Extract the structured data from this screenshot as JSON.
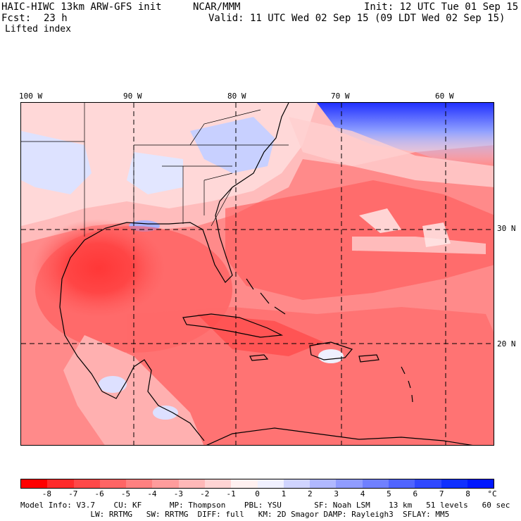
{
  "header": {
    "model_title": "HAIC-HIWC 13km ARW-GFS init",
    "org": "NCAR/MMM",
    "init": "Init: 12 UTC Tue 01 Sep 15",
    "fcst_label": "Fcst:",
    "fcst_value": "23 h",
    "valid": "Valid: 11 UTC Wed 02 Sep 15 (09 LDT Wed 02 Sep 15)",
    "field": "Lifted index"
  },
  "map": {
    "lon_labels": [
      "100 W",
      "90 W",
      "80 W",
      "70 W",
      "60 W"
    ],
    "lat_labels": [
      "30 N",
      "20 N"
    ]
  },
  "colorbar": {
    "levels": [
      "-8",
      "-7",
      "-6",
      "-5",
      "-4",
      "-3",
      "-2",
      "-1",
      "0",
      "1",
      "2",
      "3",
      "4",
      "5",
      "6",
      "7",
      "8"
    ],
    "unit": "°C",
    "colors": [
      "#ff0000",
      "#ff2a2a",
      "#ff4848",
      "#ff6464",
      "#ff8080",
      "#ff9c9c",
      "#ffb8b8",
      "#ffd4d4",
      "#fff0f0",
      "#f0f0ff",
      "#d0d4ff",
      "#b0b8ff",
      "#909cff",
      "#7080ff",
      "#5064ff",
      "#3048ff",
      "#1030ff",
      "#0018ff"
    ]
  },
  "footer": {
    "line1": "Model Info: V3.7    CU: KF      MP: Thompson    PBL: YSU       SF: Noah LSM    13 km   51 levels   60 sec",
    "line2": "               LW: RRTMG   SW: RRTMG  DIFF: full   KM: 2D Smagor DAMP: Rayleigh3  SFLAY: MM5"
  }
}
